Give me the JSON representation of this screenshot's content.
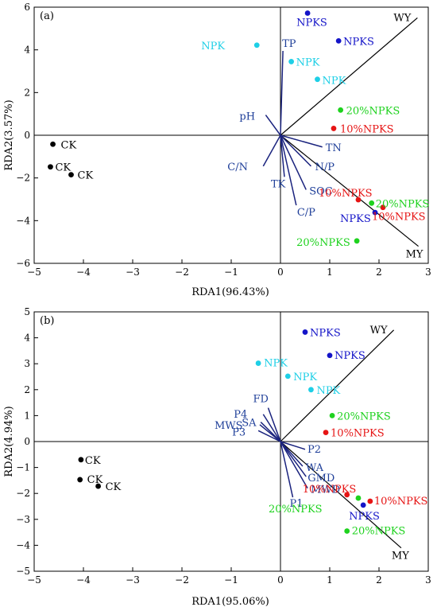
{
  "colors": {
    "CK": "#000000",
    "NPK": "#1ecfe6",
    "NPKS": "#1414c8",
    "10%NPKS": "#e61414",
    "20%NPKS": "#1ed21e",
    "env_arrow": "#1a237e",
    "species_line": "#000000"
  },
  "chart_data": [
    {
      "type": "scatter",
      "panel_label": "(a)",
      "xlabel": "RDA1(96.43%)",
      "ylabel": "RDA2(3.57%)",
      "xlim": [
        -5,
        3
      ],
      "ylim": [
        -6,
        6
      ],
      "xticks": [
        "−5",
        "−4",
        "−3",
        "−2",
        "−1",
        "0",
        "1",
        "2",
        "3"
      ],
      "yticks": [
        "−6",
        "−4",
        "−2",
        "0",
        "2",
        "4",
        "6"
      ],
      "grid": false,
      "points": [
        {
          "group": "CK",
          "label": "CK",
          "x": -4.62,
          "y": -0.42
        },
        {
          "group": "CK",
          "label": "CK",
          "x": -4.67,
          "y": -1.48
        },
        {
          "group": "CK",
          "label": "CK",
          "x": -4.25,
          "y": -1.85
        },
        {
          "group": "NPK",
          "label": "NPK",
          "x": -0.48,
          "y": 4.22
        },
        {
          "group": "NPK",
          "label": "NPK",
          "x": 0.22,
          "y": 3.45
        },
        {
          "group": "NPK",
          "label": "NPK",
          "x": 0.75,
          "y": 2.62
        },
        {
          "group": "NPKS",
          "label": "NPKS",
          "x": 0.55,
          "y": 5.72
        },
        {
          "group": "NPKS",
          "label": "NPKS",
          "x": 1.18,
          "y": 4.42
        },
        {
          "group": "NPKS",
          "label": "NPKS",
          "x": 1.92,
          "y": -3.62
        },
        {
          "group": "10%NPKS",
          "label": "10%NPKS",
          "x": 1.08,
          "y": 0.32
        },
        {
          "group": "10%NPKS",
          "label": "10%NPKS",
          "x": 1.58,
          "y": -3.02
        },
        {
          "group": "10%NPKS",
          "label": "10%NPKS",
          "x": 2.08,
          "y": -3.38
        },
        {
          "group": "20%NPKS",
          "label": "20%NPKS",
          "x": 1.22,
          "y": 1.18
        },
        {
          "group": "20%NPKS",
          "label": "20%NPKS",
          "x": 1.85,
          "y": -3.18
        },
        {
          "group": "20%NPKS",
          "label": "20%NPKS",
          "x": 1.55,
          "y": -4.95
        }
      ],
      "env_vectors": [
        {
          "label": "TP",
          "x": 0.05,
          "y": 3.95
        },
        {
          "label": "pH",
          "x": -0.3,
          "y": 0.95
        },
        {
          "label": "TN",
          "x": 0.85,
          "y": -0.55
        },
        {
          "label": "N/P",
          "x": 0.62,
          "y": -1.45
        },
        {
          "label": "C/N",
          "x": -0.35,
          "y": -1.45
        },
        {
          "label": "TK",
          "x": 0.08,
          "y": -1.95
        },
        {
          "label": "SOC",
          "x": 0.52,
          "y": -2.55
        },
        {
          "label": "C/P",
          "x": 0.32,
          "y": -3.28
        }
      ],
      "species_vectors": [
        {
          "label": "WY",
          "x": 2.78,
          "y": 5.5
        },
        {
          "label": "MY",
          "x": 2.8,
          "y": -5.2
        }
      ]
    },
    {
      "type": "scatter",
      "panel_label": "(b)",
      "xlabel": "RDA1(95.06%)",
      "ylabel": "RDA2(4.94%)",
      "xlim": [
        -5,
        3
      ],
      "ylim": [
        -5,
        5
      ],
      "xticks": [
        "−5",
        "−4",
        "−3",
        "−2",
        "−1",
        "0",
        "1",
        "2",
        "3"
      ],
      "yticks": [
        "−5",
        "−4",
        "−3",
        "−2",
        "−1",
        "0",
        "1",
        "2",
        "3",
        "4",
        "5"
      ],
      "grid": false,
      "points": [
        {
          "group": "CK",
          "label": "CK",
          "x": -4.05,
          "y": -0.7
        },
        {
          "group": "CK",
          "label": "CK",
          "x": -4.07,
          "y": -1.47
        },
        {
          "group": "CK",
          "label": "CK",
          "x": -3.7,
          "y": -1.72
        },
        {
          "group": "NPK",
          "label": "NPK",
          "x": -0.45,
          "y": 3.02
        },
        {
          "group": "NPK",
          "label": "NPK",
          "x": 0.15,
          "y": 2.52
        },
        {
          "group": "NPK",
          "label": "NPK",
          "x": 0.62,
          "y": 2.0
        },
        {
          "group": "NPKS",
          "label": "NPKS",
          "x": 0.5,
          "y": 4.22
        },
        {
          "group": "NPKS",
          "label": "NPKS",
          "x": 1.0,
          "y": 3.32
        },
        {
          "group": "NPKS",
          "label": "NPKS",
          "x": 1.68,
          "y": -2.45
        },
        {
          "group": "10%NPKS",
          "label": "10%NPKS",
          "x": 0.92,
          "y": 0.35
        },
        {
          "group": "10%NPKS",
          "label": "10%NPKS",
          "x": 1.35,
          "y": -2.05
        },
        {
          "group": "10%NPKS",
          "label": "10%NPKS",
          "x": 1.82,
          "y": -2.3
        },
        {
          "group": "20%NPKS",
          "label": "20%NPKS",
          "x": 1.05,
          "y": 1.0
        },
        {
          "group": "20%NPKS",
          "label": "20%NPKS",
          "x": 1.58,
          "y": -2.18
        },
        {
          "group": "20%NPKS",
          "label": "20%NPKS",
          "x": 1.35,
          "y": -3.45
        }
      ],
      "env_vectors": [
        {
          "label": "FD",
          "x": -0.25,
          "y": 1.3
        },
        {
          "label": "P4",
          "x": -0.35,
          "y": 1.05
        },
        {
          "label": "SA",
          "x": -0.4,
          "y": 0.75
        },
        {
          "label": "MWS",
          "x": -0.42,
          "y": 0.65
        },
        {
          "label": "P3",
          "x": -0.45,
          "y": 0.42
        },
        {
          "label": "P2",
          "x": 0.5,
          "y": -0.3
        },
        {
          "label": "WA",
          "x": 0.45,
          "y": -0.95
        },
        {
          "label": "GMD",
          "x": 0.52,
          "y": -1.35
        },
        {
          "label": "MWD",
          "x": 0.55,
          "y": -1.8
        },
        {
          "label": "P1",
          "x": 0.25,
          "y": -2.15
        }
      ],
      "species_vectors": [
        {
          "label": "WY",
          "x": 2.3,
          "y": 4.3
        },
        {
          "label": "MY",
          "x": 2.45,
          "y": -4.1
        }
      ]
    }
  ]
}
